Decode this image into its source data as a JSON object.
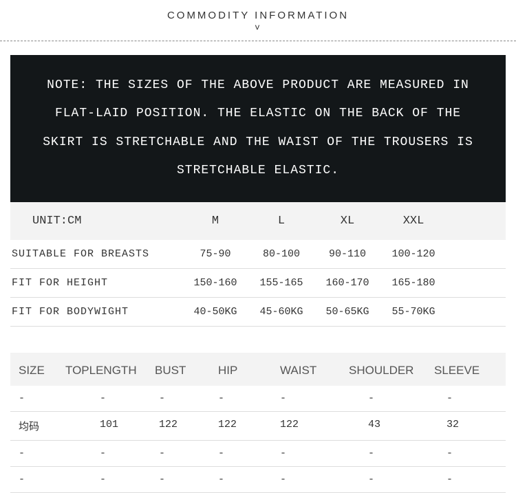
{
  "header": {
    "title": "COMMODITY INFORMATION",
    "arrow": "v"
  },
  "note": "NOTE: THE SIZES OF THE ABOVE PRODUCT ARE MEASURED IN FLAT-LAID POSITION. THE ELASTIC ON THE BACK OF THE SKIRT IS STRETCHABLE AND THE WAIST OF THE TROUSERS IS STRETCHABLE ELASTIC.",
  "sizes_table": {
    "unit_label": "UNIT:CM",
    "columns": [
      "M",
      "L",
      "XL",
      "XXL"
    ],
    "rows": [
      {
        "label": "SUITABLE FOR BREASTS",
        "values": [
          "75-90",
          "80-100",
          "90-110",
          "100-120"
        ]
      },
      {
        "label": "FIT FOR HEIGHT",
        "values": [
          "150-160",
          "155-165",
          "160-170",
          "165-180"
        ]
      },
      {
        "label": "FIT FOR BODYWIGHT",
        "values": [
          "40-50KG",
          "45-60KG",
          "50-65KG",
          "55-70KG"
        ]
      }
    ]
  },
  "dim_table": {
    "columns": [
      "SIZE",
      "TOPLENGTH",
      "BUST",
      "HIP",
      "WAIST",
      "SHOULDER",
      "SLEEVE"
    ],
    "rows": [
      [
        "-",
        "-",
        "-",
        "-",
        "-",
        "-",
        "-"
      ],
      [
        "均码",
        "101",
        "122",
        "122",
        "122",
        "43",
        "32"
      ],
      [
        "-",
        "-",
        "-",
        "-",
        "-",
        "-",
        "-"
      ],
      [
        "-",
        "-",
        "-",
        "-",
        "-",
        "-",
        "-"
      ]
    ]
  }
}
